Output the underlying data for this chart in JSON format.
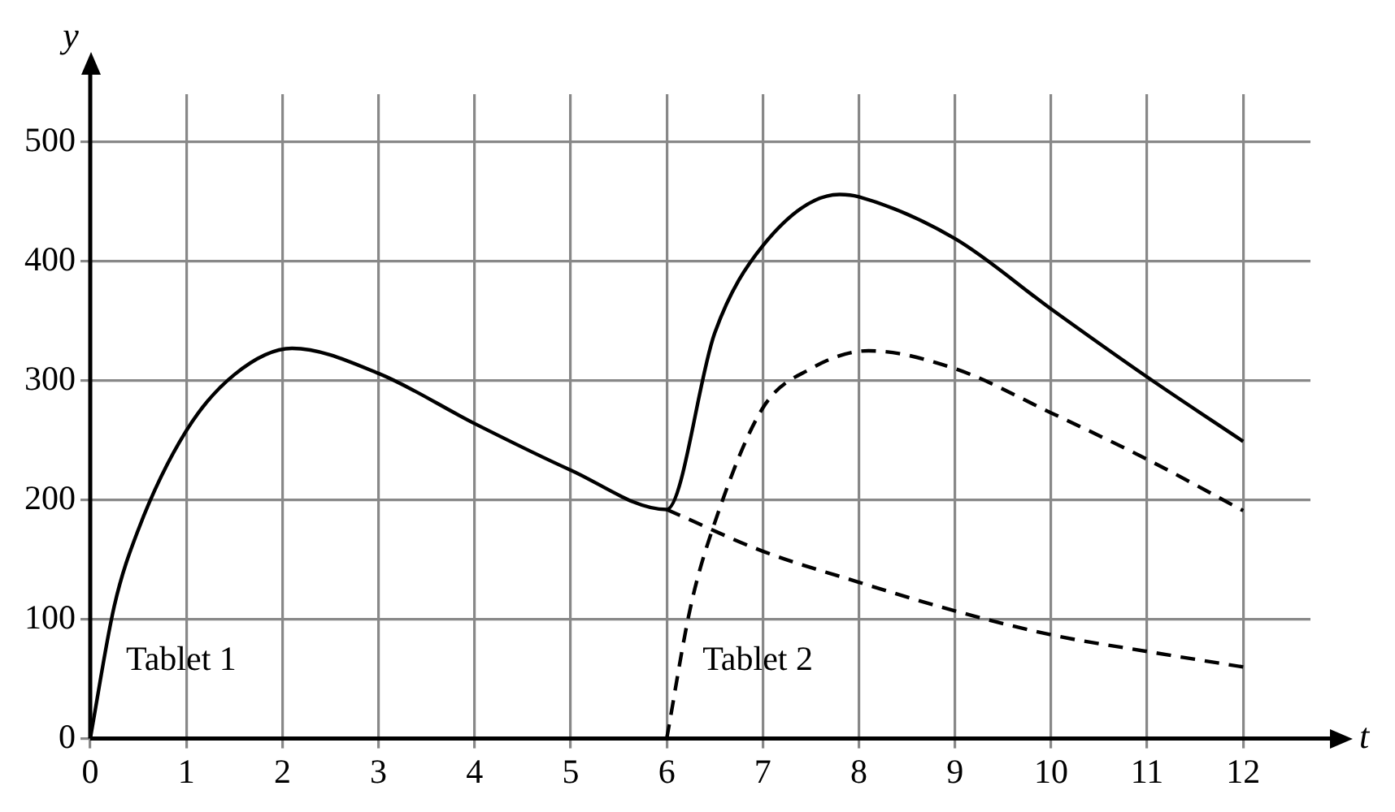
{
  "chart_data": {
    "type": "line",
    "xlabel": "t",
    "ylabel": "y",
    "series": [
      {
        "color": "#000000",
        "line_style": "solid",
        "x": [
          0,
          0.25,
          0.5,
          1,
          1.5,
          2.1,
          3,
          4,
          5,
          6,
          6.5,
          7,
          7.8,
          8,
          9,
          10,
          11,
          12
        ],
        "values": [
          0,
          111,
          175,
          258,
          305,
          327,
          306,
          264,
          225,
          192,
          340,
          413,
          456,
          454,
          419,
          360,
          303,
          249
        ]
      },
      {
        "color": "#000000",
        "line_style": "dashed",
        "x": [
          6,
          7,
          8,
          9,
          10,
          11,
          12
        ],
        "values": [
          192,
          157,
          131,
          107,
          87,
          73,
          60
        ]
      },
      {
        "color": "#000000",
        "line_style": "dashed",
        "x": [
          6,
          6.25,
          6.5,
          7,
          7.5,
          8.1,
          9,
          10,
          11,
          12
        ],
        "values": [
          0,
          111,
          181,
          277,
          310,
          325,
          310,
          273,
          234,
          191
        ]
      }
    ],
    "xlim": [
      0,
      12.7
    ],
    "ylim": [
      0,
      540
    ],
    "xticks": [
      0,
      1,
      2,
      3,
      4,
      5,
      6,
      7,
      8,
      9,
      10,
      11,
      12
    ],
    "yticks": [
      0,
      100,
      200,
      300,
      400,
      500
    ],
    "grid": true,
    "legend": false,
    "marker": "none",
    "annotations": [
      "Tablet 1",
      "Tablet 2"
    ]
  }
}
